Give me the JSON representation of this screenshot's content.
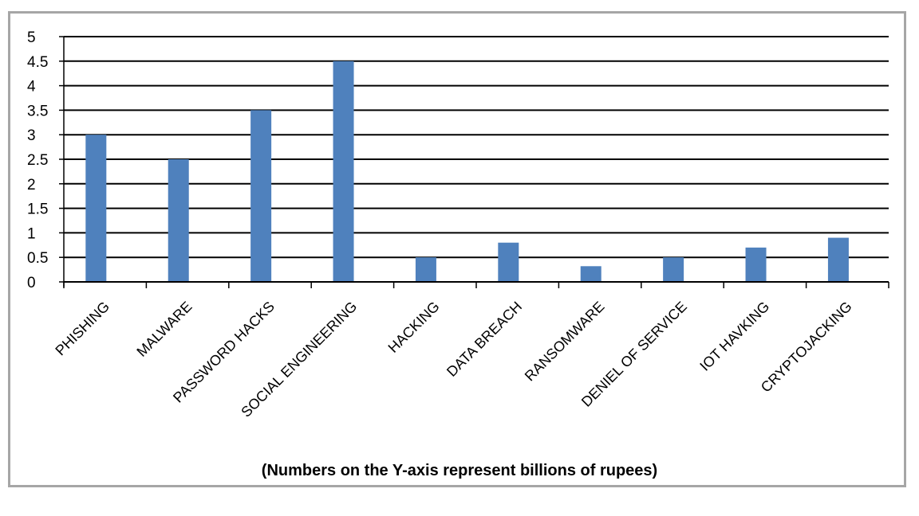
{
  "chart_data": {
    "type": "bar",
    "categories": [
      "PHISHING",
      "MALWARE",
      "PASSWORD HACKS",
      "SOCIAL ENGINEERING",
      "HACKING",
      "DATA BREACH",
      "RANSOMWARE",
      "DENIEL OF SERVICE",
      "IOT HAVKING",
      "CRYPTOJACKING"
    ],
    "values": [
      3,
      2.5,
      3.5,
      4.5,
      0.5,
      0.8,
      0.32,
      0.5,
      0.7,
      0.9
    ],
    "ylim": [
      0,
      5
    ],
    "yticks": [
      "0",
      "0.5",
      "1",
      "1.5",
      "2",
      "2.5",
      "3",
      "3.5",
      "4",
      "4.5",
      "5"
    ],
    "grid": true,
    "bar_color": "#4f81bd",
    "caption": "(Numbers on the Y-axis represent billions of rupees)"
  }
}
